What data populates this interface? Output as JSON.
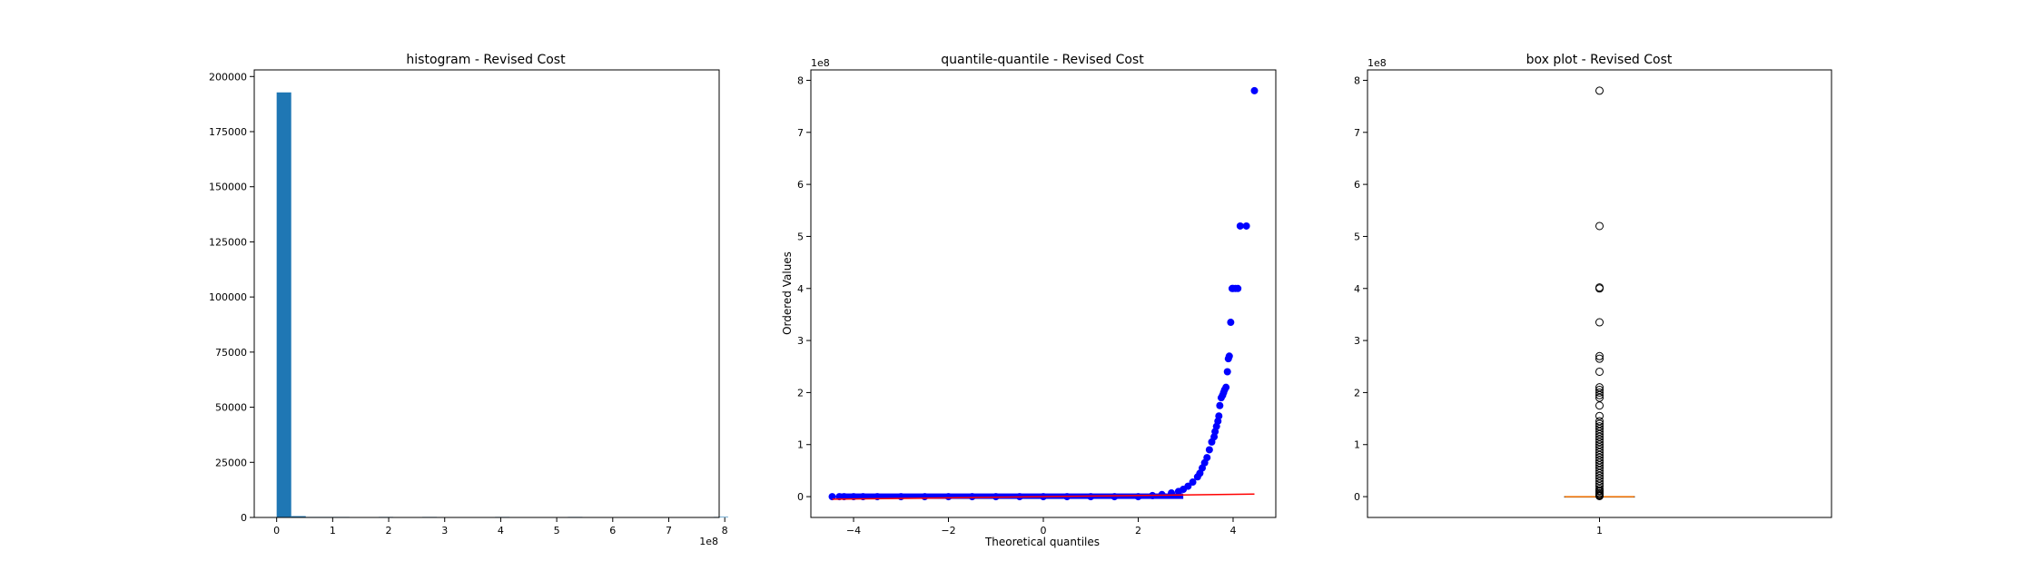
{
  "figure": {
    "background": "#ffffff"
  },
  "chart_data": [
    {
      "type": "bar",
      "title": "histogram - Revised Cost",
      "xlabel": "",
      "ylabel": "",
      "x_multiplier": "1e8",
      "xlim": [
        -0.4,
        7.9
      ],
      "ylim": [
        0,
        203000
      ],
      "xticks": [
        0,
        1,
        2,
        3,
        4,
        5,
        6,
        7,
        8
      ],
      "xtick_labels": [
        "0",
        "1",
        "2",
        "3",
        "4",
        "5",
        "6",
        "7",
        "8"
      ],
      "yticks": [
        0,
        25000,
        50000,
        75000,
        100000,
        125000,
        150000,
        175000,
        200000
      ],
      "ytick_labels": [
        "0",
        "25000",
        "50000",
        "75000",
        "100000",
        "125000",
        "150000",
        "175000",
        "200000"
      ],
      "bins": [
        {
          "x0": 0.0,
          "x1": 0.26,
          "value": 192800
        },
        {
          "x0": 0.26,
          "x1": 0.52,
          "value": 600
        },
        {
          "x0": 0.52,
          "x1": 0.78,
          "value": 60
        },
        {
          "x0": 0.78,
          "x1": 1.04,
          "value": 25
        },
        {
          "x0": 1.04,
          "x1": 1.3,
          "value": 15
        },
        {
          "x0": 1.82,
          "x1": 2.08,
          "value": 10
        },
        {
          "x0": 2.6,
          "x1": 2.86,
          "value": 5
        },
        {
          "x0": 3.9,
          "x1": 4.16,
          "value": 4
        },
        {
          "x0": 5.2,
          "x1": 5.46,
          "value": 1
        },
        {
          "x0": 7.8,
          "x1": 8.06,
          "value": 1
        }
      ],
      "color": "#1f77b4",
      "grid": false
    },
    {
      "type": "scatter",
      "title": "quantile-quantile - Revised Cost",
      "xlabel": "Theoretical quantiles",
      "ylabel": "Ordered Values",
      "y_multiplier": "1e8",
      "xlim": [
        -4.9,
        4.9
      ],
      "ylim": [
        -0.4,
        8.2
      ],
      "xticks": [
        -4,
        -2,
        0,
        2,
        4
      ],
      "xtick_labels": [
        "−4",
        "−2",
        "0",
        "2",
        "4"
      ],
      "yticks": [
        0,
        1,
        2,
        3,
        4,
        5,
        6,
        7,
        8
      ],
      "ytick_labels": [
        "0",
        "1",
        "2",
        "3",
        "4",
        "5",
        "6",
        "7",
        "8"
      ],
      "points_x": [
        -4.45,
        -4.3,
        -4.2,
        -4.0,
        -3.8,
        -3.5,
        -3.0,
        -2.5,
        -2.0,
        -1.5,
        -1.0,
        -0.5,
        0.0,
        0.5,
        1.0,
        1.5,
        2.0,
        2.3,
        2.5,
        2.7,
        2.85,
        2.95,
        3.05,
        3.15,
        3.25,
        3.3,
        3.35,
        3.4,
        3.45,
        3.5,
        3.55,
        3.6,
        3.62,
        3.65,
        3.68,
        3.7,
        3.72,
        3.75,
        3.78,
        3.8,
        3.82,
        3.85,
        3.88,
        3.9,
        3.92,
        3.95,
        3.98,
        4.0,
        4.05,
        4.1,
        4.15,
        4.28,
        4.45
      ],
      "points_y": [
        0.0,
        0.0,
        0.0,
        0.0,
        0.0,
        0.0,
        0.0,
        0.0,
        0.0,
        0.0,
        0.0,
        0.0,
        0.0,
        0.0,
        0.0,
        0.0,
        0.0,
        0.02,
        0.04,
        0.07,
        0.1,
        0.14,
        0.2,
        0.28,
        0.38,
        0.45,
        0.55,
        0.65,
        0.75,
        0.9,
        1.05,
        1.15,
        1.25,
        1.35,
        1.45,
        1.55,
        1.75,
        1.9,
        1.95,
        2.0,
        2.05,
        2.1,
        2.4,
        2.65,
        2.7,
        3.35,
        4.0,
        4.0,
        4.0,
        4.0,
        5.2,
        5.2,
        7.8
      ],
      "fit_line": {
        "x": [
          -4.45,
          4.45
        ],
        "y": [
          -0.05,
          0.05
        ]
      },
      "point_color": "#0000ff",
      "line_color": "#ff0000",
      "grid": false
    },
    {
      "type": "box",
      "title": "box plot - Revised Cost",
      "xlabel": "",
      "ylabel": "",
      "y_multiplier": "1e8",
      "xlim": [
        0.5,
        1.5
      ],
      "ylim": [
        -0.4,
        8.2
      ],
      "xticks": [
        1
      ],
      "xtick_labels": [
        "1"
      ],
      "yticks": [
        0,
        1,
        2,
        3,
        4,
        5,
        6,
        7,
        8
      ],
      "ytick_labels": [
        "0",
        "1",
        "2",
        "3",
        "4",
        "5",
        "6",
        "7",
        "8"
      ],
      "box": {
        "q1": 0.0,
        "median": 0.0,
        "q3": 0.0,
        "whisker_low": 0.0,
        "whisker_high": 0.0
      },
      "fliers": [
        0.01,
        0.02,
        0.03,
        0.05,
        0.07,
        0.1,
        0.12,
        0.15,
        0.2,
        0.25,
        0.3,
        0.35,
        0.4,
        0.45,
        0.5,
        0.55,
        0.6,
        0.65,
        0.7,
        0.75,
        0.8,
        0.85,
        0.9,
        0.95,
        1.0,
        1.05,
        1.1,
        1.15,
        1.2,
        1.25,
        1.3,
        1.35,
        1.4,
        1.45,
        1.55,
        1.75,
        1.9,
        1.95,
        2.0,
        2.05,
        2.1,
        2.4,
        2.65,
        2.7,
        3.35,
        4.0,
        4.02,
        5.2,
        7.8
      ],
      "median_color": "#ff7f0e",
      "grid": false
    }
  ]
}
